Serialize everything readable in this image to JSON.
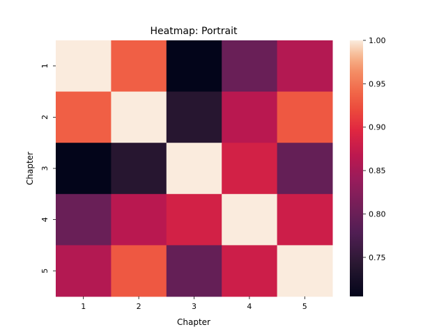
{
  "chart_data": {
    "type": "heatmap",
    "title": "Heatmap: Portrait",
    "xlabel": "Chapter",
    "ylabel": "Chapter",
    "x_categories": [
      "1",
      "2",
      "3",
      "4",
      "5"
    ],
    "y_categories": [
      "1",
      "2",
      "3",
      "4",
      "5"
    ],
    "values": [
      [
        1.0,
        0.935,
        0.705,
        0.8,
        0.86
      ],
      [
        0.935,
        1.0,
        0.74,
        0.865,
        0.93
      ],
      [
        0.705,
        0.74,
        1.0,
        0.885,
        0.795
      ],
      [
        0.8,
        0.865,
        0.885,
        1.0,
        0.88
      ],
      [
        0.86,
        0.93,
        0.795,
        0.88,
        1.0
      ]
    ],
    "colorbar": {
      "range": [
        0.705,
        1.0
      ],
      "ticks": [
        0.75,
        0.8,
        0.85,
        0.9,
        0.95,
        1.0
      ],
      "tick_labels": [
        "0.75",
        "0.80",
        "0.85",
        "0.90",
        "0.95",
        "1.00"
      ],
      "colormap": "rocket",
      "placement": "right"
    },
    "grid": false
  }
}
